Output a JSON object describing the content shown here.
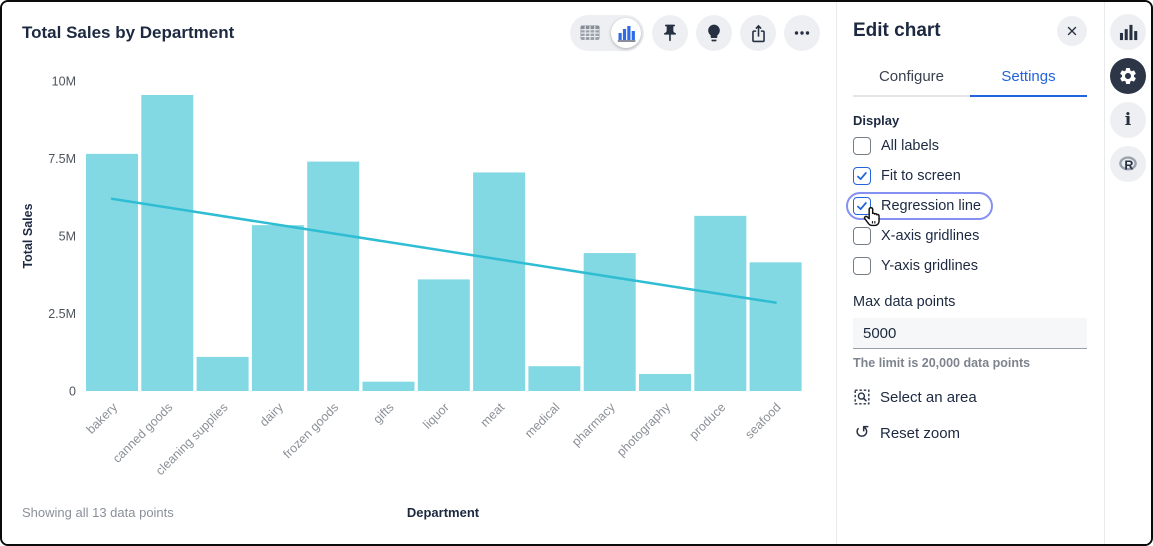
{
  "chart_card": {
    "title": "Total Sales by Department",
    "footer_note": "Showing all 13 data points",
    "toolbar": {
      "view_toggle_selected": "chart",
      "icons": [
        "table-view-icon",
        "chart-view-icon",
        "pin-icon",
        "lightbulb-icon",
        "share-icon",
        "more-options-icon"
      ]
    }
  },
  "chart_data": {
    "type": "bar",
    "title": "Total Sales by Department",
    "xlabel": "Department",
    "ylabel": "Total Sales",
    "categories": [
      "bakery",
      "canned goods",
      "cleaning supplies",
      "dairy",
      "frozen goods",
      "gifts",
      "liquor",
      "meat",
      "medical",
      "pharmacy",
      "photography",
      "produce",
      "seafood"
    ],
    "values": [
      7.65,
      9.55,
      1.1,
      5.35,
      7.4,
      0.3,
      3.6,
      7.05,
      0.8,
      4.45,
      0.55,
      5.65,
      4.15
    ],
    "unit": "M",
    "ylim": [
      0,
      10
    ],
    "y_ticks": [
      {
        "label": "0",
        "value": 0
      },
      {
        "label": "2.5M",
        "value": 2.5
      },
      {
        "label": "5M",
        "value": 5
      },
      {
        "label": "7.5M",
        "value": 7.5
      },
      {
        "label": "10M",
        "value": 10
      }
    ],
    "grid": false,
    "legend": "none",
    "bar_color": "#82d9e3",
    "regression_line": {
      "enabled": true,
      "color": "#2fbdd4",
      "y_start": 6.2,
      "y_end": 2.85
    }
  },
  "edit_panel": {
    "title": "Edit chart",
    "tabs": [
      {
        "label": "Configure",
        "active": false
      },
      {
        "label": "Settings",
        "active": true
      }
    ],
    "display_section": {
      "heading": "Display",
      "checkboxes": [
        {
          "label": "All labels",
          "checked": false,
          "focused": false
        },
        {
          "label": "Fit to screen",
          "checked": true,
          "focused": false
        },
        {
          "label": "Regression line",
          "checked": true,
          "focused": true,
          "cursor": "hand-cursor"
        },
        {
          "label": "X-axis gridlines",
          "checked": false,
          "focused": false
        },
        {
          "label": "Y-axis gridlines",
          "checked": false,
          "focused": false
        }
      ]
    },
    "max_data_points": {
      "label": "Max data points",
      "value": "5000",
      "helper": "The limit is 20,000 data points"
    },
    "actions": [
      {
        "label": "Select an area",
        "icon": "select-area-icon"
      },
      {
        "label": "Reset zoom",
        "icon": "reset-zoom-icon"
      }
    ]
  },
  "right_rail": {
    "items": [
      {
        "icon": "bar-chart-icon",
        "active": false
      },
      {
        "icon": "settings-gear-icon",
        "active": true
      },
      {
        "icon": "info-icon",
        "active": false
      },
      {
        "icon": "r-logo-icon",
        "active": false
      }
    ]
  },
  "colors": {
    "accent_blue": "#2264dc",
    "focus_ring": "#8590f2",
    "bar_teal": "#82d9e3",
    "regression_teal": "#2fbdd4",
    "dark_navy": "#2c3647"
  }
}
